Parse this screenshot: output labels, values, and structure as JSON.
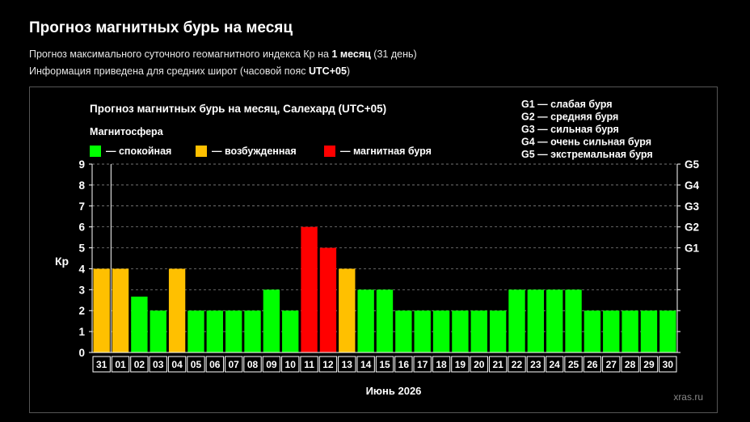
{
  "header": {
    "title": "Прогноз магнитных бурь на месяц",
    "line1_pre": "Прогноз максимального суточного геомагнитного индекса Кр на ",
    "line1_bold": "1 месяц",
    "line1_post": " (31 день)",
    "line2_pre": "Информация приведена для средних широт (часовой пояс ",
    "line2_bold": "UTC+05",
    "line2_post": ")"
  },
  "chart_data": {
    "type": "bar",
    "title": "Прогноз магнитных бурь на месяц, Салехард (UTC+05)",
    "xlabel": "Июнь 2026",
    "ylabel": "Кр",
    "ylim": [
      0,
      9
    ],
    "yticks": [
      "0",
      "1",
      "2",
      "3",
      "4",
      "5",
      "6",
      "7",
      "8",
      "9"
    ],
    "right_ticks": [
      {
        "value": 5,
        "label": "G1"
      },
      {
        "value": 6,
        "label": "G2"
      },
      {
        "value": 7,
        "label": "G3"
      },
      {
        "value": 8,
        "label": "G4"
      },
      {
        "value": 9,
        "label": "G5"
      }
    ],
    "legend_title": "Магнитосфера",
    "legend": [
      {
        "label": "— спокойная",
        "color": "#00ff00"
      },
      {
        "label": "— возбужденная",
        "color": "#ffc000"
      },
      {
        "label": "— магнитная буря",
        "color": "#ff0000"
      }
    ],
    "g_legend": [
      "G1 — слабая буря",
      "G2 — средняя буря",
      "G3 — сильная буря",
      "G4 — очень сильная буря",
      "G5 — экстремальная буря"
    ],
    "categories": [
      "31",
      "01",
      "02",
      "03",
      "04",
      "05",
      "06",
      "07",
      "08",
      "09",
      "10",
      "11",
      "12",
      "13",
      "14",
      "15",
      "16",
      "17",
      "18",
      "19",
      "20",
      "21",
      "22",
      "23",
      "24",
      "25",
      "26",
      "27",
      "28",
      "29",
      "30"
    ],
    "values": [
      4,
      4,
      2.67,
      2,
      4,
      2,
      2,
      2,
      2,
      3,
      2,
      6,
      5,
      4,
      3,
      3,
      2,
      2,
      2,
      2,
      2,
      2,
      3,
      3,
      3,
      3,
      2,
      2,
      2,
      2,
      2
    ],
    "colors": {
      "quiet": "#00ff00",
      "active": "#ffc000",
      "storm": "#ff0000"
    },
    "watermark": "xras.ru"
  }
}
